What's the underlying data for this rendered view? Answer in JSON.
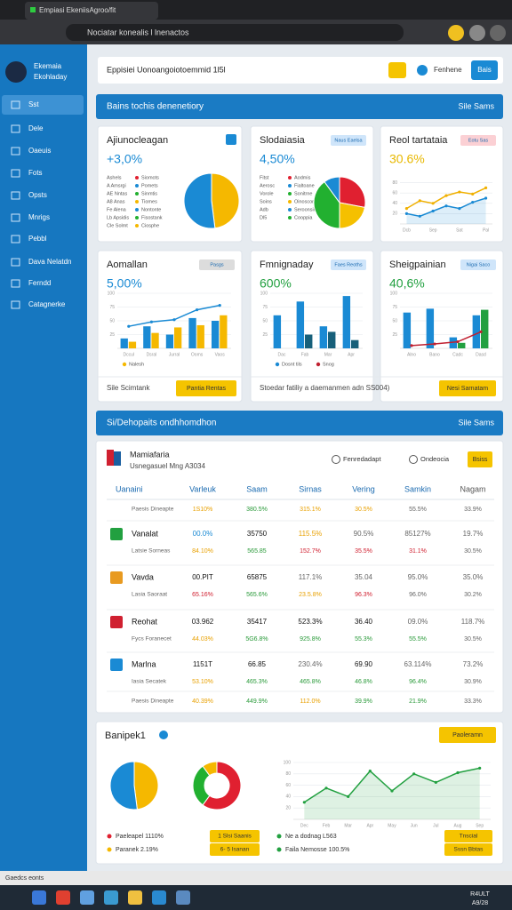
{
  "browser": {
    "tab_title": "Empiasi EkeniisAgroo/fit",
    "address": "Nociatar konealis l lnenactos"
  },
  "sidebar": {
    "user_name": "Ekemaia",
    "user_sub": "Ekohladay",
    "items": [
      "Sst",
      "Dele",
      "Oaeuis",
      "Fots",
      "Opsts",
      "Mnrigs",
      "Pebbl",
      "Dava Nelatdn",
      "Ferndd",
      "Catagnerke"
    ]
  },
  "header": {
    "search": "Eppisiei Uonoangoiotoemmid 1l5l",
    "user": "Fenhene",
    "button": "Bais"
  },
  "section1": {
    "title": "Bains tochis denenetiory",
    "action": "Sile Sams"
  },
  "cards": [
    {
      "title": "Ajiunocleagan",
      "value": "+3,0%",
      "legend_left": [
        "Ashels",
        "A Amsrgi",
        "AE Nntas",
        "A8 Anas",
        "Fe Alena",
        "Lb Apsidis",
        "Cle Solmt"
      ],
      "legend_right": [
        "Siomots",
        "Pomets",
        "Sinmtis",
        "Tiomes",
        "Nontonte",
        "Fisostank",
        "Ciosphe"
      ],
      "chart": {
        "type": "pie",
        "values": [
          48,
          52
        ],
        "colors": [
          "#f5b800",
          "#1a8ad4"
        ]
      }
    },
    {
      "title": "Slodaiasia",
      "value": "4,50%",
      "badge": "Naus Eaelsa",
      "legend_left": [
        "Fitst",
        "Aerosc",
        "Vorole",
        "Soins",
        "Adb",
        "Dl5"
      ],
      "legend_right": [
        "Aodmis",
        "Fialtoane",
        "Sonitrne",
        "Oinoscon",
        "Seroonsiin",
        "Cooppia"
      ],
      "chart": {
        "type": "pie",
        "values": [
          28,
          22,
          40,
          10
        ],
        "colors": [
          "#e02030",
          "#f5c000",
          "#22b030",
          "#1a8ad4"
        ]
      }
    },
    {
      "title": "Reol tartataia",
      "value": "30.6%",
      "badge": "Eotu Sas",
      "chart": {
        "type": "line",
        "categories": [
          "Dcb",
          null,
          "Sep",
          null,
          "Sat",
          null,
          "Pal"
        ],
        "ylim": [
          0,
          100
        ],
        "yticks": [
          20,
          40,
          60,
          80
        ],
        "series": [
          {
            "kind": "line",
            "color": "#f0b000",
            "values": [
              30,
              45,
              40,
              55,
              62,
              58,
              70
            ]
          },
          {
            "kind": "line",
            "color": "#1a8ad4",
            "area": true,
            "values": [
              20,
              15,
              25,
              35,
              30,
              42,
              50
            ]
          }
        ]
      }
    },
    {
      "title": "Aomallan",
      "value": "5,00%",
      "badge": "Pasgs",
      "legend": [
        "Nalesh"
      ],
      "chart": {
        "type": "bar",
        "categories": [
          "Dccul",
          "Dsral",
          "Jurral",
          "Ooms",
          "Vaos"
        ],
        "ylim": [
          0,
          100
        ],
        "yticks": [
          25,
          50,
          75,
          100
        ],
        "series": [
          {
            "kind": "bar",
            "color": "#1a8ad4",
            "values": [
              18,
              40,
              25,
              55,
              50
            ]
          },
          {
            "kind": "bar",
            "color": "#f5b800",
            "values": [
              12,
              28,
              38,
              42,
              60
            ]
          },
          {
            "kind": "line",
            "color": "#1a8ad4",
            "values": [
              40,
              48,
              52,
              70,
              78
            ]
          }
        ]
      }
    },
    {
      "title": "Fmnignaday",
      "value": "600%",
      "badge": "Faes Reoths",
      "legend": [
        "Dosnt tils",
        "Snog"
      ],
      "chart": {
        "type": "bar",
        "categories": [
          "Dac",
          "Fab",
          "Mar",
          "Apr"
        ],
        "ylim": [
          0,
          100
        ],
        "yticks": [
          25,
          50,
          75,
          100
        ],
        "series": [
          {
            "kind": "bar",
            "color": "#1a8ad4",
            "values": [
              60,
              85,
              40,
              95
            ]
          },
          {
            "kind": "bar",
            "color": "#17607a",
            "values": [
              0,
              25,
              30,
              15
            ]
          }
        ]
      }
    },
    {
      "title": "Sheigpainian",
      "value": "40,6%",
      "badge": "Nigai Saco",
      "chart": {
        "type": "bar",
        "categories": [
          "Alno",
          "Bano",
          "Cadc",
          "Dasd"
        ],
        "ylim": [
          0,
          100
        ],
        "yticks": [
          25,
          50,
          75,
          100
        ],
        "series": [
          {
            "kind": "bar",
            "color": "#1a8ad4",
            "values": [
              65,
              72,
              20,
              60
            ]
          },
          {
            "kind": "bar",
            "color": "#22a040",
            "values": [
              0,
              0,
              10,
              70
            ]
          },
          {
            "kind": "line",
            "color": "#c02030",
            "values": [
              5,
              8,
              12,
              30
            ]
          }
        ]
      }
    }
  ],
  "cards_footer": {
    "left_text": "Sile Scimtank",
    "left_button": "Pantia Rentas",
    "right_text": "Stoedar fatiliy a daemanmen adn SS004)",
    "right_button": "Nesi Sarnatam"
  },
  "section2": {
    "title": "Si/Dehopaits ondhhomdhon",
    "action": "Sile Sams"
  },
  "table": {
    "title": "Mamiafaria",
    "subtitle": "Usnegasuel Mng A3034",
    "options": [
      "Fenredadapt",
      "Ondeocia"
    ],
    "button": "Bsiss",
    "columns": [
      "Uanaini",
      "Varleuk",
      "Saam",
      "Sirnas",
      "Vering",
      "Samkin",
      "Nagam"
    ],
    "rows": [
      [
        "Paesis Dineapte",
        "1S10%",
        "380.5%",
        "315.1%",
        "30.5%",
        "55.5%",
        "33.9%"
      ],
      [
        "Vanalat",
        "00.0%",
        "35750",
        "115.5%",
        "90.5%",
        "85127%",
        "19.7%"
      ],
      [
        "Latsie Sorneas",
        "84.10%",
        "565.85",
        "152.7%",
        "35.5%",
        "31.1%",
        "30.5%"
      ],
      [
        "Vavda",
        "00.PIT",
        "65875",
        "117.1%",
        "35.04",
        "95.0%",
        "35.0%"
      ],
      [
        "Lasia Saoraat",
        "65.16%",
        "565.6%",
        "23.5.8%",
        "96.3%",
        "96.0%",
        "30.2%"
      ],
      [
        "Reohat",
        "03.962",
        "35417",
        "523.3%",
        "36.40",
        "09.0%",
        "118.7%"
      ],
      [
        "Fycs Foranecet",
        "44.03%",
        "5G6.8%",
        "925.8%",
        "55.3%",
        "55.5%",
        "30.5%"
      ],
      [
        "Marlna",
        "1151T",
        "66.85",
        "230.4%",
        "69.90",
        "63.114%",
        "73.2%"
      ],
      [
        "Iasia Secatek",
        "53.10%",
        "465.3%",
        "465.8%",
        "46.8%",
        "96.4%",
        "30.9%"
      ],
      [
        "Paesis Dineapte",
        "40.39%",
        "449.9%",
        "112.0%",
        "39.9%",
        "21.9%",
        "33.3%"
      ]
    ]
  },
  "bottom": {
    "title": "Banipek1",
    "button": "Paoleramn",
    "pie1": {
      "type": "pie",
      "values": [
        48,
        52
      ],
      "colors": [
        "#f5b800",
        "#1a8ad4"
      ]
    },
    "pie2": {
      "type": "donut",
      "values": [
        60,
        30,
        10
      ],
      "colors": [
        "#e02030",
        "#22b030",
        "#f5b800"
      ]
    },
    "line": {
      "type": "line",
      "categories": [
        "Dec",
        "Feb",
        "Mar",
        "Apr",
        "May",
        "Jun",
        "Jul",
        "Aug",
        "Sep"
      ],
      "ylim": [
        0,
        100
      ],
      "yticks": [
        20,
        40,
        60,
        80,
        100
      ],
      "series": [
        {
          "kind": "line",
          "color": "#22a040",
          "area": true,
          "values": [
            30,
            55,
            40,
            85,
            50,
            80,
            65,
            82,
            90
          ]
        }
      ]
    },
    "legend_left": [
      "Paeleapel 1110%",
      "Paranek 2.19%"
    ],
    "tags_left": [
      "1 Slsi Saanis",
      "6- 5 Isanan"
    ],
    "legend_right": [
      "Ne a dodnag L563",
      "Faila Nemosse 100.5%"
    ],
    "tags_right": [
      "Tnscial",
      "Sssn Bbtas"
    ]
  },
  "status": "Gaedcs eonts",
  "taskbar": {
    "clock": "R4ULT",
    "date": "A9/28"
  }
}
